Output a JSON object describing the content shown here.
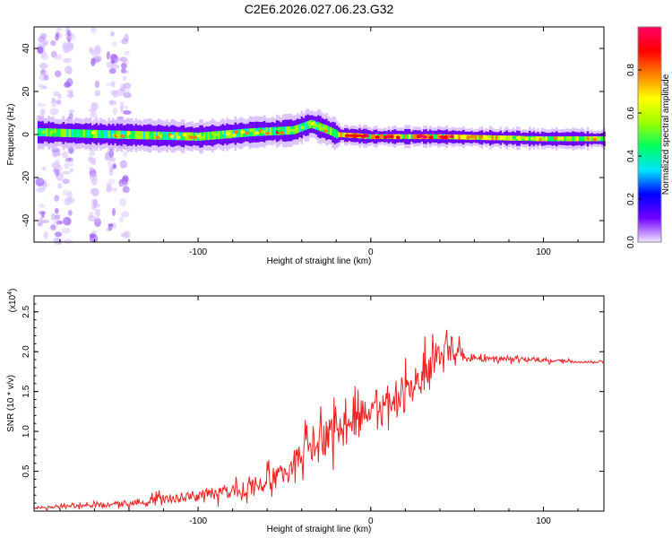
{
  "title": "C2E6.2026.027.06.23.G32",
  "chart_data": [
    {
      "type": "heatmap",
      "xlabel": "Height of straight line (km)",
      "ylabel": "Frequency (Hz)",
      "xlim": [
        -195,
        135
      ],
      "ylim": [
        -50,
        50
      ],
      "xticks": [
        -100,
        0,
        100
      ],
      "yticks": [
        -40,
        -20,
        0,
        20,
        40
      ],
      "colorbar": {
        "label": "Normalized spectral amplitude",
        "range": [
          0,
          1
        ],
        "ticks": [
          "0.0",
          "0.2",
          "0.4",
          "0.6",
          "0.8"
        ],
        "colors": [
          "#f2e6ff",
          "#7000ff",
          "#0000ff",
          "#00e5ff",
          "#00ff60",
          "#a0ff00",
          "#ffff00",
          "#ff8000",
          "#ff0000",
          "#ff0066"
        ]
      },
      "ridge": {
        "description": "dominant frequency line near 0 Hz",
        "x": [
          -190,
          -150,
          -100,
          -70,
          -45,
          -35,
          -25,
          -20,
          0,
          40,
          100,
          135
        ],
        "y": [
          1,
          0,
          -1,
          1,
          2,
          5,
          2,
          0,
          -1,
          -1,
          -2,
          -2
        ]
      },
      "streaks_x": [
        -190,
        -182,
        -175,
        -160,
        -150,
        -143
      ]
    },
    {
      "type": "line",
      "xlabel": "Height of straight line (km)",
      "ylabel": "SNR (10 * v/v)",
      "y_multiplier": "(x10",
      "y_multiplier_exp": "4",
      "xlim": [
        -195,
        135
      ],
      "ylim": [
        0,
        2.7
      ],
      "xticks": [
        -100,
        0,
        100
      ],
      "yticks": [
        0.5,
        1.0,
        1.5,
        2.0,
        2.5
      ],
      "ytick_labels": [
        "0.5",
        "1.0",
        "1.5",
        "2.0",
        "2.5"
      ],
      "color": "#ee2222",
      "series": [
        {
          "name": "SNR",
          "x": [
            -195,
            -170,
            -150,
            -130,
            -110,
            -90,
            -70,
            -55,
            -45,
            -35,
            -25,
            -15,
            -5,
            5,
            15,
            25,
            35,
            45,
            50,
            55,
            70,
            90,
            100,
            110,
            120,
            135
          ],
          "y": [
            0.04,
            0.06,
            0.08,
            0.13,
            0.17,
            0.22,
            0.3,
            0.42,
            0.6,
            0.8,
            0.95,
            1.05,
            1.22,
            1.28,
            1.35,
            1.55,
            1.75,
            2.05,
            2.05,
            1.9,
            1.92,
            1.9,
            1.9,
            1.88,
            1.87,
            1.87
          ],
          "noise_amp": [
            0.03,
            0.05,
            0.07,
            0.1,
            0.14,
            0.18,
            0.22,
            0.3,
            0.35,
            0.45,
            0.5,
            0.5,
            0.45,
            0.35,
            0.45,
            0.5,
            0.55,
            0.6,
            0.25,
            0.08,
            0.06,
            0.07,
            0.05,
            0.06,
            0.02,
            0.02
          ]
        }
      ]
    }
  ]
}
